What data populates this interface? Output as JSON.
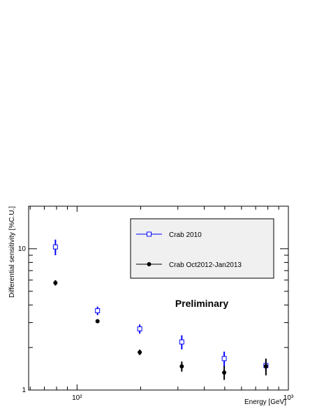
{
  "chart_data": {
    "type": "errorbar",
    "x_label": "Energy [GeV]",
    "y_label": "Differential sensitivity [%C.U.]",
    "annotation": "Preliminary",
    "log_x": true,
    "log_y": true,
    "xlim": [
      59,
      1000
    ],
    "ylim": [
      1,
      20
    ],
    "xticks": [
      {
        "value": 100,
        "label": "10²"
      },
      {
        "value": 1000,
        "label": "10³"
      }
    ],
    "yticks": [
      1,
      10
    ],
    "xminor_ticks": [
      60,
      70,
      80,
      90,
      200,
      300,
      400,
      500,
      600,
      700,
      800,
      900
    ],
    "yminor_ticks": [
      2,
      3,
      4,
      5,
      6,
      7,
      8,
      9,
      20
    ],
    "legend": "top-right",
    "x": [
      79,
      125,
      198,
      313,
      497,
      783
    ],
    "series": [
      {
        "name": "Crab 2010",
        "color": "#0000ff",
        "marker": "open-square",
        "values": [
          10.3,
          3.64,
          2.71,
          2.19,
          1.67,
          1.49
        ],
        "errors": [
          1.3,
          0.25,
          0.2,
          0.25,
          0.2,
          0.12
        ]
      },
      {
        "name": "Crab Oct2012-Jan2013",
        "color": "#000000",
        "marker": "filled-circle",
        "values": [
          5.74,
          3.07,
          1.85,
          1.47,
          1.33,
          1.47
        ],
        "errors": [
          0.25,
          0.1,
          0.08,
          0.12,
          0.15,
          0.2
        ]
      }
    ]
  }
}
